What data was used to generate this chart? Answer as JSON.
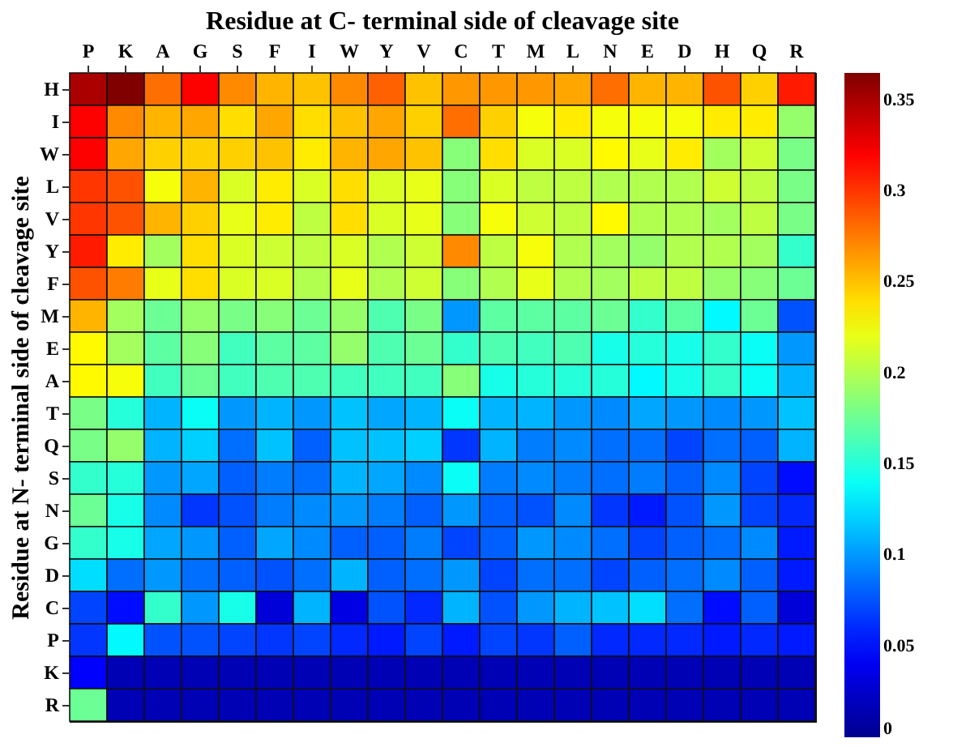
{
  "chart_data": {
    "type": "heatmap",
    "title": "Residue at C- terminal side of cleavage site",
    "ylabel": "Residue at N- terminal side of cleavage site",
    "categories": [
      "P",
      "K",
      "A",
      "G",
      "S",
      "F",
      "I",
      "W",
      "Y",
      "V",
      "C",
      "T",
      "M",
      "L",
      "N",
      "E",
      "D",
      "H",
      "Q",
      "R"
    ],
    "y_categories": [
      "H",
      "I",
      "W",
      "L",
      "V",
      "Y",
      "F",
      "M",
      "E",
      "A",
      "T",
      "Q",
      "S",
      "N",
      "G",
      "D",
      "C",
      "P",
      "K",
      "R"
    ],
    "cells": [
      [
        0.35,
        0.365,
        0.28,
        0.32,
        0.27,
        0.255,
        0.25,
        0.27,
        0.285,
        0.25,
        0.265,
        0.265,
        0.265,
        0.26,
        0.28,
        0.255,
        0.255,
        0.29,
        0.245,
        0.31
      ],
      [
        0.32,
        0.27,
        0.255,
        0.26,
        0.24,
        0.26,
        0.24,
        0.25,
        0.26,
        0.245,
        0.28,
        0.245,
        0.225,
        0.235,
        0.225,
        0.225,
        0.225,
        0.235,
        0.235,
        0.19
      ],
      [
        0.32,
        0.26,
        0.245,
        0.245,
        0.245,
        0.25,
        0.235,
        0.255,
        0.26,
        0.25,
        0.185,
        0.24,
        0.215,
        0.215,
        0.23,
        0.22,
        0.235,
        0.195,
        0.21,
        0.18
      ],
      [
        0.3,
        0.29,
        0.225,
        0.255,
        0.215,
        0.235,
        0.215,
        0.24,
        0.215,
        0.22,
        0.185,
        0.215,
        0.205,
        0.205,
        0.2,
        0.2,
        0.2,
        0.21,
        0.205,
        0.18
      ],
      [
        0.3,
        0.29,
        0.255,
        0.245,
        0.22,
        0.235,
        0.205,
        0.24,
        0.215,
        0.22,
        0.185,
        0.225,
        0.21,
        0.205,
        0.23,
        0.2,
        0.2,
        0.195,
        0.205,
        0.18
      ],
      [
        0.31,
        0.235,
        0.195,
        0.24,
        0.215,
        0.21,
        0.205,
        0.215,
        0.2,
        0.21,
        0.27,
        0.205,
        0.225,
        0.2,
        0.195,
        0.19,
        0.2,
        0.2,
        0.195,
        0.155
      ],
      [
        0.29,
        0.275,
        0.22,
        0.24,
        0.215,
        0.215,
        0.2,
        0.22,
        0.2,
        0.21,
        0.185,
        0.2,
        0.22,
        0.2,
        0.195,
        0.205,
        0.205,
        0.19,
        0.185,
        0.175
      ],
      [
        0.255,
        0.195,
        0.175,
        0.19,
        0.18,
        0.185,
        0.175,
        0.19,
        0.165,
        0.18,
        0.1,
        0.17,
        0.17,
        0.17,
        0.175,
        0.155,
        0.17,
        0.135,
        0.175,
        0.075
      ],
      [
        0.23,
        0.195,
        0.17,
        0.185,
        0.16,
        0.17,
        0.17,
        0.19,
        0.165,
        0.175,
        0.155,
        0.165,
        0.16,
        0.165,
        0.145,
        0.15,
        0.145,
        0.155,
        0.14,
        0.1
      ],
      [
        0.23,
        0.225,
        0.16,
        0.175,
        0.16,
        0.165,
        0.165,
        0.16,
        0.16,
        0.16,
        0.185,
        0.145,
        0.15,
        0.15,
        0.15,
        0.135,
        0.145,
        0.155,
        0.14,
        0.11
      ],
      [
        0.18,
        0.15,
        0.11,
        0.14,
        0.1,
        0.11,
        0.1,
        0.115,
        0.105,
        0.11,
        0.14,
        0.11,
        0.11,
        0.1,
        0.095,
        0.105,
        0.1,
        0.095,
        0.1,
        0.115
      ],
      [
        0.18,
        0.19,
        0.11,
        0.12,
        0.085,
        0.115,
        0.08,
        0.115,
        0.115,
        0.12,
        0.065,
        0.11,
        0.09,
        0.095,
        0.085,
        0.085,
        0.07,
        0.085,
        0.08,
        0.11
      ],
      [
        0.155,
        0.15,
        0.1,
        0.105,
        0.08,
        0.09,
        0.085,
        0.11,
        0.105,
        0.095,
        0.14,
        0.09,
        0.095,
        0.09,
        0.085,
        0.09,
        0.08,
        0.095,
        0.07,
        0.05
      ],
      [
        0.175,
        0.145,
        0.095,
        0.065,
        0.075,
        0.09,
        0.095,
        0.1,
        0.09,
        0.08,
        0.1,
        0.08,
        0.075,
        0.095,
        0.065,
        0.055,
        0.075,
        0.1,
        0.07,
        0.06
      ],
      [
        0.155,
        0.145,
        0.105,
        0.1,
        0.08,
        0.105,
        0.095,
        0.08,
        0.08,
        0.09,
        0.07,
        0.08,
        0.1,
        0.095,
        0.085,
        0.07,
        0.08,
        0.085,
        0.095,
        0.055
      ],
      [
        0.125,
        0.085,
        0.1,
        0.085,
        0.08,
        0.075,
        0.085,
        0.11,
        0.08,
        0.085,
        0.1,
        0.07,
        0.085,
        0.085,
        0.07,
        0.08,
        0.085,
        0.095,
        0.08,
        0.055
      ],
      [
        0.07,
        0.05,
        0.155,
        0.1,
        0.145,
        0.03,
        0.11,
        0.035,
        0.075,
        0.06,
        0.11,
        0.075,
        0.1,
        0.11,
        0.115,
        0.125,
        0.085,
        0.05,
        0.08,
        0.03
      ],
      [
        0.065,
        0.135,
        0.075,
        0.075,
        0.07,
        0.065,
        0.07,
        0.06,
        0.055,
        0.07,
        0.055,
        0.07,
        0.065,
        0.08,
        0.06,
        0.06,
        0.06,
        0.055,
        0.06,
        0.055
      ],
      [
        0.045,
        0.015,
        0.015,
        0.015,
        0.015,
        0.015,
        0.015,
        0.015,
        0.015,
        0.015,
        0.015,
        0.015,
        0.015,
        0.015,
        0.015,
        0.015,
        0.015,
        0.015,
        0.015,
        0.015
      ],
      [
        0.175,
        0.015,
        0.015,
        0.015,
        0.015,
        0.015,
        0.015,
        0.015,
        0.015,
        0.015,
        0.015,
        0.015,
        0.015,
        0.015,
        0.015,
        0.015,
        0.015,
        0.015,
        0.015,
        0.015
      ]
    ],
    "clim": [
      0,
      0.365
    ],
    "cticks": [
      0,
      0.05,
      0.1,
      0.15,
      0.2,
      0.25,
      0.3,
      0.35
    ]
  }
}
